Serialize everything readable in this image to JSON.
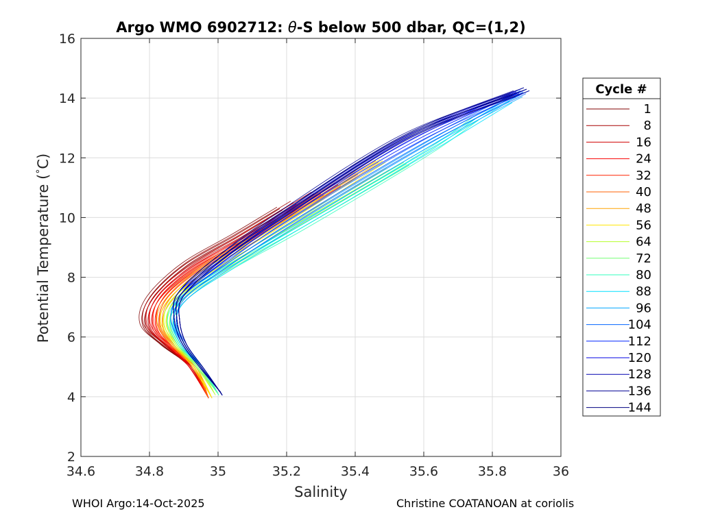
{
  "chart_data": {
    "type": "line",
    "title_prefix": "Argo WMO 6902712: ",
    "title_symbol": "θ",
    "title_suffix": "-S below 500 dbar,  QC=(1,2)",
    "xlabel": "Salinity",
    "ylabel_prefix": "Potential Temperature (",
    "ylabel_degree": "°",
    "ylabel_unit": "C)",
    "xlim": [
      34.6,
      36
    ],
    "ylim": [
      2,
      16
    ],
    "xticks": [
      34.6,
      34.8,
      35,
      35.2,
      35.4,
      35.6,
      35.8,
      36
    ],
    "xtick_labels": [
      "34.6",
      "34.8",
      "35",
      "35.2",
      "35.4",
      "35.6",
      "35.8",
      "36"
    ],
    "yticks": [
      2,
      4,
      6,
      8,
      10,
      12,
      14,
      16
    ],
    "ytick_labels": [
      "2",
      "4",
      "6",
      "8",
      "10",
      "12",
      "14",
      "16"
    ],
    "grid": true,
    "legend_title": "Cycle #",
    "legend_placement": "outside-right",
    "legend": [
      {
        "label": "1",
        "color": "#800000"
      },
      {
        "label": "8",
        "color": "#a70000"
      },
      {
        "label": "16",
        "color": "#d00000"
      },
      {
        "label": "24",
        "color": "#f80000"
      },
      {
        "label": "32",
        "color": "#ff2200"
      },
      {
        "label": "40",
        "color": "#ff6200"
      },
      {
        "label": "48",
        "color": "#ffa200"
      },
      {
        "label": "56",
        "color": "#ffe600"
      },
      {
        "label": "64",
        "color": "#b4ff28"
      },
      {
        "label": "72",
        "color": "#74ff74"
      },
      {
        "label": "80",
        "color": "#30ffbc"
      },
      {
        "label": "88",
        "color": "#00e0ff"
      },
      {
        "label": "96",
        "color": "#00a4ff"
      },
      {
        "label": "104",
        "color": "#0064ff"
      },
      {
        "label": "112",
        "color": "#0024ff"
      },
      {
        "label": "120",
        "color": "#0000e4"
      },
      {
        "label": "128",
        "color": "#0000b0"
      },
      {
        "label": "136",
        "color": "#000094"
      },
      {
        "label": "144",
        "color": "#000080"
      }
    ],
    "series_template": {
      "description": "theta-S profiles from 500 dbar to deepest level",
      "deep_end": {
        "salinity": [
          34.96,
          35.01
        ],
        "theta": 4.0
      },
      "salinity_min": {
        "salinity": [
          34.76,
          34.88
        ],
        "theta": [
          6.4,
          6.6
        ]
      },
      "top_end": {
        "salinity": [
          35.2,
          35.9
        ],
        "theta": [
          10.5,
          14.3
        ]
      }
    },
    "series": [
      {
        "cycle": 1,
        "points": [
          [
            34.97,
            4.0
          ],
          [
            34.92,
            5.0
          ],
          [
            34.84,
            5.7
          ],
          [
            34.78,
            6.4
          ],
          [
            34.8,
            7.3
          ],
          [
            34.9,
            8.4
          ],
          [
            35.05,
            9.4
          ],
          [
            35.18,
            10.3
          ]
        ]
      },
      {
        "cycle": 8,
        "points": [
          [
            34.97,
            4.0
          ],
          [
            34.92,
            5.0
          ],
          [
            34.85,
            5.7
          ],
          [
            34.79,
            6.4
          ],
          [
            34.81,
            7.3
          ],
          [
            34.91,
            8.4
          ],
          [
            35.06,
            9.4
          ],
          [
            35.22,
            10.5
          ]
        ]
      },
      {
        "cycle": 16,
        "points": [
          [
            34.97,
            4.0
          ],
          [
            34.92,
            5.0
          ],
          [
            34.85,
            5.7
          ],
          [
            34.8,
            6.4
          ],
          [
            34.82,
            7.3
          ],
          [
            34.92,
            8.3
          ],
          [
            35.08,
            9.4
          ],
          [
            35.28,
            10.8
          ]
        ]
      },
      {
        "cycle": 24,
        "points": [
          [
            34.97,
            4.0
          ],
          [
            34.92,
            5.0
          ],
          [
            34.86,
            5.7
          ],
          [
            34.81,
            6.4
          ],
          [
            34.83,
            7.3
          ],
          [
            34.93,
            8.3
          ],
          [
            35.1,
            9.4
          ],
          [
            35.3,
            10.8
          ]
        ]
      },
      {
        "cycle": 32,
        "points": [
          [
            34.97,
            4.0
          ],
          [
            34.93,
            5.0
          ],
          [
            34.86,
            5.7
          ],
          [
            34.82,
            6.4
          ],
          [
            34.84,
            7.3
          ],
          [
            34.94,
            8.3
          ],
          [
            35.12,
            9.5
          ],
          [
            35.35,
            11.1
          ]
        ]
      },
      {
        "cycle": 40,
        "points": [
          [
            34.97,
            4.0
          ],
          [
            34.93,
            5.0
          ],
          [
            34.87,
            5.7
          ],
          [
            34.83,
            6.4
          ],
          [
            34.85,
            7.3
          ],
          [
            34.95,
            8.3
          ],
          [
            35.14,
            9.6
          ],
          [
            35.4,
            11.5
          ]
        ]
      },
      {
        "cycle": 48,
        "points": [
          [
            34.98,
            4.0
          ],
          [
            34.93,
            5.0
          ],
          [
            34.87,
            5.7
          ],
          [
            34.83,
            6.5
          ],
          [
            34.86,
            7.3
          ],
          [
            34.96,
            8.3
          ],
          [
            35.15,
            9.6
          ],
          [
            35.46,
            11.9
          ]
        ]
      },
      {
        "cycle": 56,
        "points": [
          [
            34.98,
            4.0
          ],
          [
            34.93,
            5.0
          ],
          [
            34.88,
            5.7
          ],
          [
            34.84,
            6.5
          ],
          [
            34.87,
            7.3
          ],
          [
            34.98,
            8.3
          ],
          [
            35.17,
            9.6
          ],
          [
            35.48,
            11.9
          ]
        ]
      },
      {
        "cycle": 64,
        "points": [
          [
            34.99,
            4.1
          ],
          [
            34.94,
            5.0
          ],
          [
            34.88,
            5.7
          ],
          [
            34.85,
            6.5
          ],
          [
            34.88,
            7.3
          ],
          [
            35.0,
            8.2
          ],
          [
            35.2,
            9.6
          ],
          [
            35.5,
            11.6
          ]
        ]
      },
      {
        "cycle": 72,
        "points": [
          [
            35.0,
            4.1
          ],
          [
            34.94,
            5.0
          ],
          [
            34.89,
            5.7
          ],
          [
            34.86,
            6.5
          ],
          [
            34.89,
            7.3
          ],
          [
            35.01,
            8.2
          ],
          [
            35.22,
            9.6
          ],
          [
            35.55,
            11.8
          ]
        ]
      },
      {
        "cycle": 80,
        "points": [
          [
            35.0,
            4.1
          ],
          [
            34.95,
            5.0
          ],
          [
            34.89,
            5.7
          ],
          [
            34.86,
            6.5
          ],
          [
            34.9,
            7.3
          ],
          [
            35.03,
            8.3
          ],
          [
            35.25,
            9.7
          ],
          [
            35.6,
            12.1
          ],
          [
            35.75,
            13.3
          ]
        ]
      },
      {
        "cycle": 88,
        "points": [
          [
            35.01,
            4.1
          ],
          [
            34.95,
            5.0
          ],
          [
            34.9,
            5.7
          ],
          [
            34.87,
            6.5
          ],
          [
            34.9,
            7.3
          ],
          [
            35.03,
            8.3
          ],
          [
            35.25,
            9.8
          ],
          [
            35.62,
            12.3
          ],
          [
            35.85,
            13.9
          ]
        ]
      },
      {
        "cycle": 96,
        "points": [
          [
            35.01,
            4.1
          ],
          [
            34.95,
            5.0
          ],
          [
            34.9,
            5.7
          ],
          [
            34.87,
            6.6
          ],
          [
            34.9,
            7.3
          ],
          [
            35.02,
            8.3
          ],
          [
            35.24,
            9.9
          ],
          [
            35.62,
            12.5
          ],
          [
            35.88,
            14.1
          ]
        ]
      },
      {
        "cycle": 104,
        "points": [
          [
            35.01,
            4.1
          ],
          [
            34.95,
            5.0
          ],
          [
            34.9,
            5.8
          ],
          [
            34.87,
            6.6
          ],
          [
            34.9,
            7.4
          ],
          [
            35.02,
            8.4
          ],
          [
            35.22,
            9.9
          ],
          [
            35.6,
            12.5
          ],
          [
            35.89,
            14.2
          ]
        ]
      },
      {
        "cycle": 112,
        "points": [
          [
            35.01,
            4.1
          ],
          [
            34.95,
            5.0
          ],
          [
            34.9,
            5.8
          ],
          [
            34.88,
            6.6
          ],
          [
            34.89,
            7.4
          ],
          [
            35.0,
            8.4
          ],
          [
            35.2,
            10.0
          ],
          [
            35.58,
            12.6
          ],
          [
            35.9,
            14.3
          ]
        ]
      },
      {
        "cycle": 120,
        "points": [
          [
            35.01,
            4.1
          ],
          [
            34.95,
            5.0
          ],
          [
            34.9,
            5.8
          ],
          [
            34.88,
            6.6
          ],
          [
            34.89,
            7.4
          ],
          [
            35.0,
            8.5
          ],
          [
            35.2,
            10.1
          ],
          [
            35.56,
            12.7
          ],
          [
            35.88,
            14.2
          ]
        ]
      },
      {
        "cycle": 128,
        "points": [
          [
            35.01,
            4.1
          ],
          [
            34.95,
            5.0
          ],
          [
            34.9,
            5.8
          ],
          [
            34.88,
            6.6
          ],
          [
            34.89,
            7.4
          ],
          [
            34.99,
            8.5
          ],
          [
            35.19,
            10.1
          ],
          [
            35.55,
            12.7
          ],
          [
            35.87,
            14.2
          ]
        ]
      },
      {
        "cycle": 136,
        "points": [
          [
            35.01,
            4.1
          ],
          [
            34.95,
            5.0
          ],
          [
            34.9,
            5.8
          ],
          [
            34.88,
            6.6
          ],
          [
            34.89,
            7.4
          ],
          [
            34.99,
            8.5
          ],
          [
            35.18,
            10.1
          ],
          [
            35.54,
            12.7
          ],
          [
            35.86,
            14.1
          ]
        ]
      },
      {
        "cycle": 144,
        "points": [
          [
            35.01,
            4.1
          ],
          [
            34.95,
            5.0
          ],
          [
            34.9,
            5.8
          ],
          [
            34.88,
            6.6
          ],
          [
            34.89,
            7.4
          ],
          [
            34.99,
            8.5
          ],
          [
            35.19,
            10.1
          ],
          [
            35.55,
            12.7
          ],
          [
            35.9,
            14.3
          ]
        ]
      }
    ]
  },
  "footer": {
    "left": "WHOI Argo:14-Oct-2025",
    "right": "Christine COATANOAN at coriolis"
  }
}
